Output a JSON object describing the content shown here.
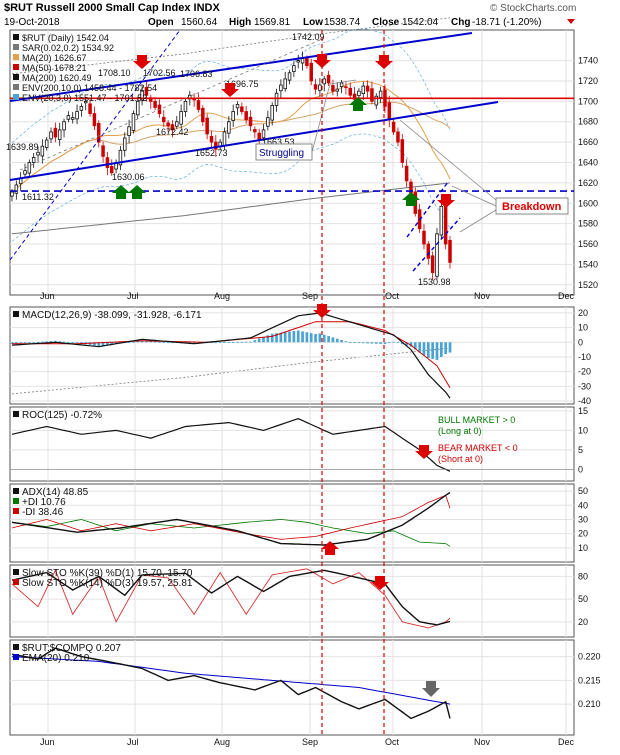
{
  "header": {
    "ticker_line": "$RUT Russell 2000 Small Cap Index INDX",
    "date": "19-Oct-2018",
    "brand": "© StockCharts.com",
    "ohlc": {
      "open_label": "Open",
      "open": "1560.64",
      "high_label": "High",
      "high": "1569.81",
      "low_label": "Low",
      "low": "1538.74",
      "close_label": "Close",
      "close": "1542.04",
      "chg_label": "Chg",
      "chg": "-18.71 (-1.20%)"
    }
  },
  "colors": {
    "price_up": "#111111",
    "price_down": "#cc0000",
    "trendline": "#0000cc",
    "ma20": "#e3a04f",
    "ma50": "#cc0000",
    "ma200": "#777777",
    "signal_down": "#dd0000",
    "signal_up": "#007700",
    "histogram": "#4ba3d4"
  },
  "x_axis": {
    "labels": [
      "Jun",
      "Jul",
      "Aug",
      "Sep",
      "Oct",
      "Nov",
      "Dec"
    ]
  },
  "annotations": {
    "struggling": "Struggling",
    "breakdown": "Breakdown"
  },
  "chart_data": [
    {
      "type": "candlestick",
      "panel": "price",
      "legend": [
        {
          "label": "$RUT (Daily) 1542.04",
          "color": "#111111"
        },
        {
          "label": "SAR(0.02,0.2) 1534.92",
          "color": "#777777"
        },
        {
          "label": "MA(20) 1626.67",
          "color": "#e3a04f"
        },
        {
          "label": "MA(50) 1678.21",
          "color": "#cc0000"
        },
        {
          "label": "MA(200) 1620.49",
          "color": "#111111"
        },
        {
          "label": "ENV(200,10,0) 1458.44 - 1782.54",
          "color": "#777777"
        },
        {
          "label": "ENV(20,3,0) 1551.47 - 1701.52",
          "color": "#4ba3d4"
        }
      ],
      "ylim": [
        1510,
        1770
      ],
      "yticks": [
        1520,
        1540,
        1560,
        1580,
        1600,
        1620,
        1640,
        1660,
        1680,
        1700,
        1720,
        1740
      ],
      "closes": [
        1611,
        1618,
        1625,
        1632,
        1640,
        1645,
        1650,
        1656,
        1662,
        1670,
        1665,
        1672,
        1680,
        1686,
        1684,
        1690,
        1695,
        1700,
        1688,
        1676,
        1660,
        1646,
        1635,
        1630,
        1640,
        1652,
        1664,
        1675,
        1688,
        1700,
        1710,
        1706,
        1700,
        1694,
        1688,
        1680,
        1676,
        1672,
        1680,
        1690,
        1700,
        1706,
        1702,
        1692,
        1680,
        1668,
        1660,
        1653,
        1660,
        1670,
        1680,
        1690,
        1697,
        1690,
        1682,
        1676,
        1670,
        1663,
        1672,
        1684,
        1696,
        1708,
        1716,
        1722,
        1728,
        1735,
        1740,
        1742,
        1735,
        1720,
        1712,
        1716,
        1722,
        1718,
        1710,
        1712,
        1718,
        1714,
        1706,
        1702,
        1710,
        1715,
        1710,
        1700,
        1705,
        1710,
        1695,
        1682,
        1670,
        1660,
        1640,
        1622,
        1610,
        1590,
        1575,
        1560,
        1546,
        1532,
        1570,
        1597,
        1560,
        1542
      ],
      "price_labels": [
        "1639.89",
        "1611.32",
        "1630.06",
        "1708.10",
        "1702.56",
        "1706.83",
        "1672.42",
        "1652.73",
        "1696.75",
        "1663.53",
        "1742.09",
        "1530.98"
      ],
      "hline_y": 1703,
      "dashed_hline_y": 1612
    },
    {
      "type": "line",
      "panel": "macd",
      "legend": [
        {
          "label": "MACD(12,26,9) -38.099, -31.928, -6.171",
          "color": "#111111"
        }
      ],
      "ylim": [
        -42,
        24
      ],
      "yticks": [
        -40,
        -30,
        -20,
        -10,
        0,
        10,
        20
      ]
    },
    {
      "type": "line",
      "panel": "roc",
      "legend": [
        {
          "label": "ROC(125) -0.72%",
          "color": "#111111"
        }
      ],
      "ylim": [
        -3,
        16
      ],
      "yticks": [
        0,
        5,
        10,
        15
      ],
      "notes": [
        "BULL MARKET > 0",
        "(Long at 0)",
        "BEAR MARKET < 0",
        "(Short at 0)"
      ]
    },
    {
      "type": "line",
      "panel": "adx",
      "legend": [
        {
          "label": "ADX(14) 48.85",
          "color": "#111111"
        },
        {
          "label": "+DI 10.76",
          "color": "#007700"
        },
        {
          "label": "-DI 38.46",
          "color": "#cc0000"
        }
      ],
      "ylim": [
        0,
        55
      ],
      "yticks": [
        10,
        20,
        30,
        40,
        50
      ]
    },
    {
      "type": "line",
      "panel": "sto",
      "legend": [
        {
          "label": "Slow STO %K(39) %D(1) 15.70, 15.70",
          "color": "#111111"
        },
        {
          "label": "Slow STO %K(14) %D(3) 19.57, 25.81",
          "color": "#cc0000"
        }
      ],
      "ylim": [
        0,
        95
      ],
      "yticks": [
        20,
        50,
        80
      ]
    },
    {
      "type": "line",
      "panel": "ratio",
      "legend": [
        {
          "label": "$RUT:$COMPQ 0.207",
          "color": "#111111"
        },
        {
          "label": "EMA(20) 0.210",
          "color": "#0000cc"
        }
      ],
      "ylim": [
        0.2035,
        0.2235
      ],
      "yticks": [
        0.21,
        0.215,
        0.22
      ],
      "ytick_labels": [
        "0.210",
        "0.215",
        "0.220"
      ]
    }
  ]
}
